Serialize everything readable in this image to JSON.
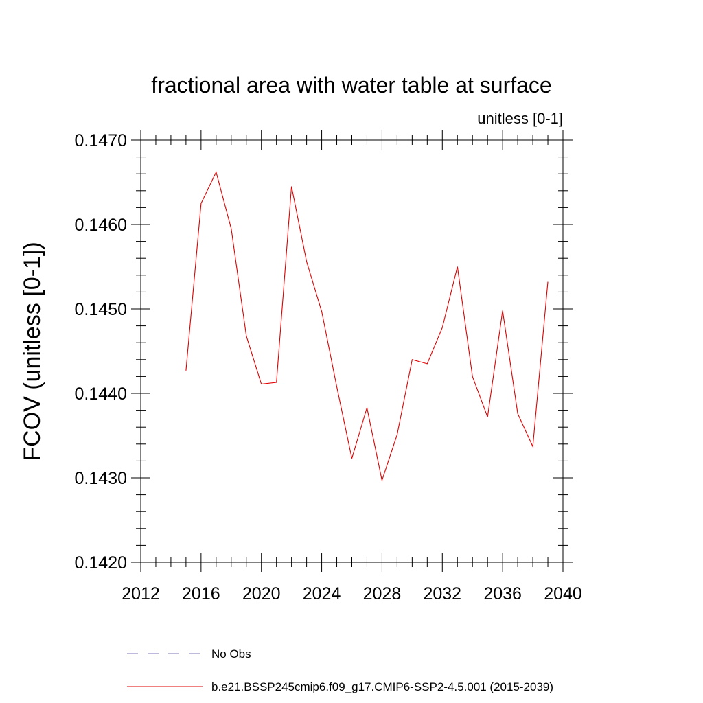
{
  "chart_data": {
    "type": "line",
    "title": "fractional area with water table at surface",
    "subtitle": "unitless [0-1]",
    "xlabel": "",
    "ylabel": "FCOV  (unitless [0-1])",
    "xlim": [
      2012,
      2040
    ],
    "ylim": [
      0.142,
      0.147
    ],
    "x_ticks": [
      "2012",
      "2016",
      "2020",
      "2024",
      "2028",
      "2032",
      "2036",
      "2040"
    ],
    "y_ticks": [
      "0.1420",
      "0.1430",
      "0.1440",
      "0.1450",
      "0.1460",
      "0.1470"
    ],
    "grid": false,
    "legend_position": "bottom",
    "series": [
      {
        "name": "b.e21.BSSP245cmip6.f09_g17.CMIP6-SSP2-4.5.001 (2015-2039)",
        "color": "#e00000",
        "style": "solid",
        "x": [
          2015,
          2016,
          2017,
          2018,
          2019,
          2020,
          2021,
          2022,
          2023,
          2024,
          2025,
          2026,
          2027,
          2028,
          2029,
          2030,
          2031,
          2032,
          2033,
          2034,
          2035,
          2036,
          2037,
          2038,
          2039
        ],
        "y": [
          0.14427,
          0.14625,
          0.14662,
          0.14595,
          0.14468,
          0.14411,
          0.14413,
          0.14645,
          0.14556,
          0.14497,
          0.14408,
          0.14323,
          0.14383,
          0.14297,
          0.14351,
          0.1444,
          0.14435,
          0.14478,
          0.1455,
          0.1442,
          0.14372,
          0.14498,
          0.14376,
          0.14337,
          0.14532
        ]
      }
    ],
    "legend": [
      {
        "label": "No Obs",
        "color": "#7b74b8",
        "style": "dashed"
      },
      {
        "label": "b.e21.BSSP245cmip6.f09_g17.CMIP6-SSP2-4.5.001 (2015-2039)",
        "color": "#e00000",
        "style": "solid"
      }
    ]
  }
}
